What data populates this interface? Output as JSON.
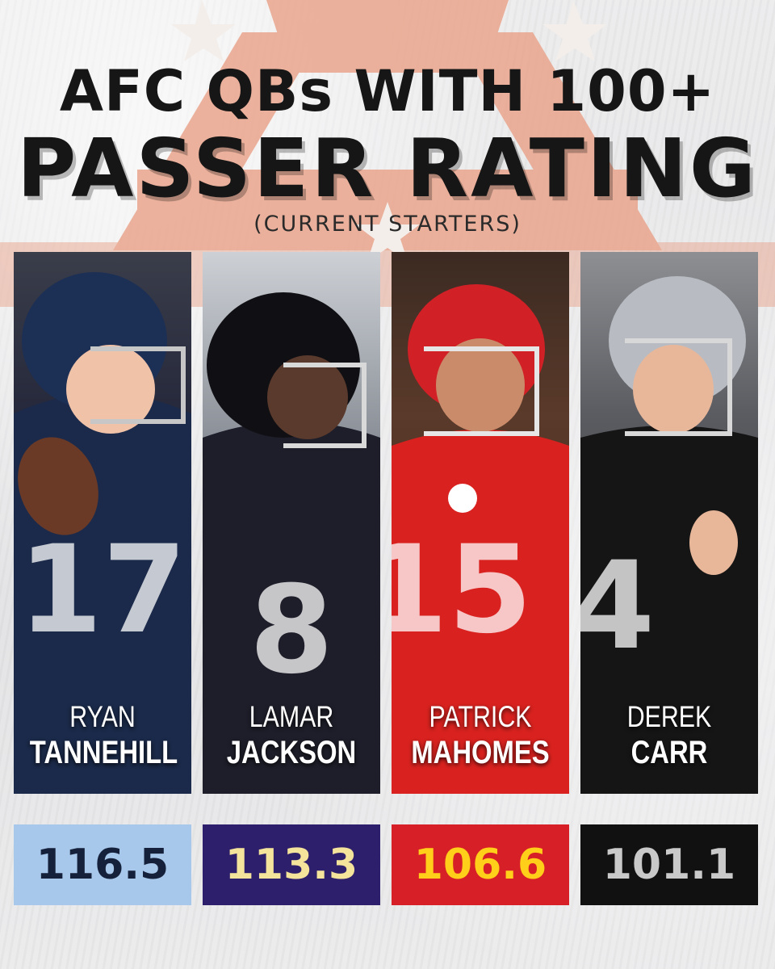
{
  "title": {
    "line1": "AFC QBs WITH 100+",
    "line2": "PASSER RATING",
    "subtitle": "(CURRENT STARTERS)"
  },
  "players": [
    {
      "first": "RYAN",
      "last": "TANNEHILL",
      "rating": "116.5",
      "jersey": "17",
      "rating_bg": "#a7c8ea",
      "rating_color": "#15203a",
      "uniform": "#1b2a4a",
      "helmet": "#1c2f55"
    },
    {
      "first": "LAMAR",
      "last": "JACKSON",
      "rating": "113.3",
      "jersey": "8",
      "rating_bg": "#2d1f6b",
      "rating_color": "#f4e39a",
      "uniform": "#1e1e2a",
      "helmet": "#101014"
    },
    {
      "first": "PATRICK",
      "last": "MAHOMES",
      "rating": "106.6",
      "jersey": "15",
      "rating_bg": "#d61f26",
      "rating_color": "#ffcf1a",
      "uniform": "#d9221f",
      "helmet": "#d22027"
    },
    {
      "first": "DEREK",
      "last": "CARR",
      "rating": "101.1",
      "jersey": "4",
      "rating_bg": "#111111",
      "rating_color": "#c9c9c9",
      "uniform": "#151515",
      "helmet": "#b8bcc2"
    }
  ],
  "colors": {
    "logo": "#e9a28a",
    "title": "#161616"
  }
}
